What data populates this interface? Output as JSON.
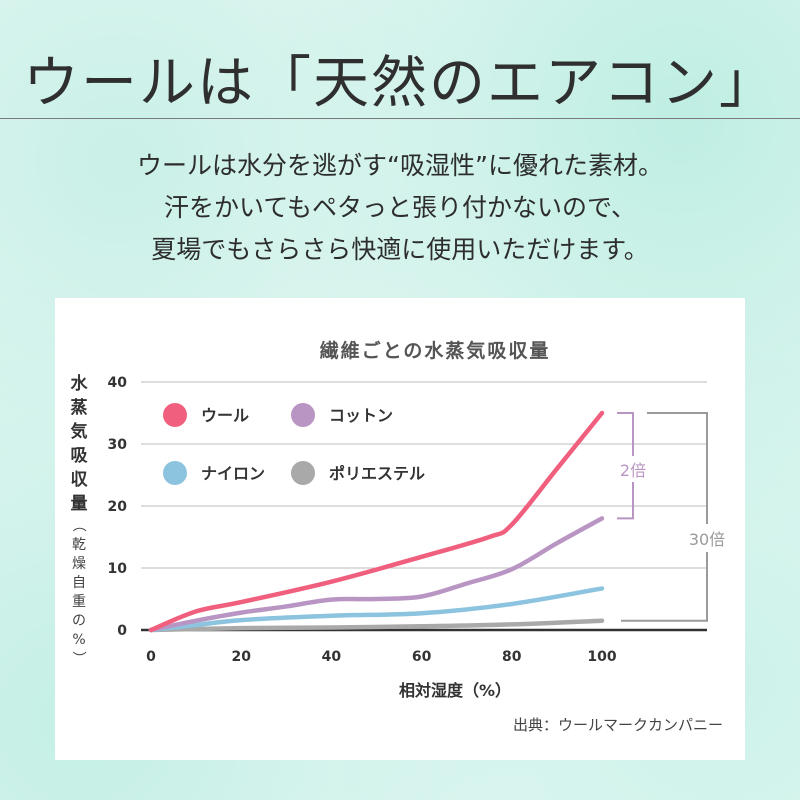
{
  "headline": "ウールは「天然のエアコン」",
  "intro": [
    "ウールは水分を逃がす“吸湿性”に優れた素材。",
    "汗をかいてもペタっと張り付かないので、",
    "夏場でもさらさら快適に使用いただけます。"
  ],
  "chart_data": {
    "type": "line",
    "title": "繊維ごとの水蒸気吸収量",
    "xlabel": "相対湿度（%）",
    "ylabel": "水蒸気吸収量（乾燥自重の%）",
    "ylabel_main": [
      "水",
      "蒸",
      "気",
      "吸",
      "収",
      "量"
    ],
    "ylabel_sub": [
      "（",
      "乾",
      "燥",
      "自",
      "重",
      "の",
      "%",
      "）"
    ],
    "xlim": [
      0,
      100
    ],
    "ylim": [
      0,
      40
    ],
    "x_ticks": [
      0,
      20,
      40,
      60,
      80,
      100
    ],
    "y_ticks": [
      0,
      10,
      20,
      30,
      40
    ],
    "grid": true,
    "legend": "top-left",
    "series": [
      {
        "name": "ウール",
        "color": "#f0607e",
        "x": [
          0,
          10,
          20,
          40,
          60,
          75,
          80,
          90,
          100
        ],
        "y": [
          0,
          3,
          4.5,
          7.8,
          11.8,
          15,
          17,
          26,
          35
        ]
      },
      {
        "name": "コットン",
        "color": "#b995c4",
        "x": [
          0,
          10,
          20,
          30,
          40,
          50,
          60,
          70,
          80,
          90,
          100
        ],
        "y": [
          0,
          1.5,
          2.8,
          3.8,
          4.9,
          5,
          5.4,
          7.5,
          9.8,
          14,
          18
        ]
      },
      {
        "name": "ナイロン",
        "color": "#8cc3df",
        "x": [
          0,
          10,
          20,
          40,
          60,
          80,
          100
        ],
        "y": [
          0,
          0.8,
          1.6,
          2.3,
          2.7,
          4.2,
          6.7
        ]
      },
      {
        "name": "ポリエステル",
        "color": "#a9a9a9",
        "x": [
          0,
          20,
          40,
          60,
          80,
          100
        ],
        "y": [
          0,
          0.3,
          0.4,
          0.6,
          0.9,
          1.5
        ]
      }
    ],
    "annotations": [
      {
        "text": "2倍",
        "color": "#b995c4"
      },
      {
        "text": "30倍",
        "color": "#9a9a9a"
      }
    ],
    "source": "出典：ウールマークカンパニー"
  }
}
